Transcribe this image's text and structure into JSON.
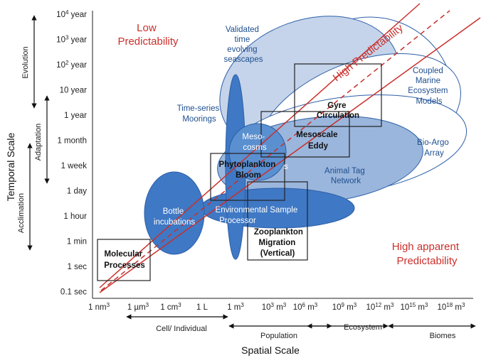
{
  "axes": {
    "y_title": "Temporal Scale",
    "x_title": "Spatial Scale",
    "y_ticks": [
      {
        "base": "10",
        "sup": "4",
        "unit": "year"
      },
      {
        "base": "10",
        "sup": "3",
        "unit": "year"
      },
      {
        "base": "10",
        "sup": "2",
        "unit": "year"
      },
      {
        "base": "10 year",
        "sup": "",
        "unit": ""
      },
      {
        "base": "1 year",
        "sup": "",
        "unit": ""
      },
      {
        "base": "1 month",
        "sup": "",
        "unit": ""
      },
      {
        "base": "1 week",
        "sup": "",
        "unit": ""
      },
      {
        "base": "1 day",
        "sup": "",
        "unit": ""
      },
      {
        "base": "1 hour",
        "sup": "",
        "unit": ""
      },
      {
        "base": "1 min",
        "sup": "",
        "unit": ""
      },
      {
        "base": "1 sec",
        "sup": "",
        "unit": ""
      },
      {
        "base": "0.1 sec",
        "sup": "",
        "unit": ""
      }
    ],
    "x_ticks": [
      {
        "base": "1 nm",
        "sup": "3"
      },
      {
        "base": "1 µm",
        "sup": "3"
      },
      {
        "base": "1 cm",
        "sup": "3"
      },
      {
        "base": "1 L",
        "sup": ""
      },
      {
        "base": "1 m",
        "sup": "3"
      },
      {
        "base": "10",
        "sup": "3",
        "tail": " m",
        "tailsup": "3"
      },
      {
        "base": "10",
        "sup": "6",
        "tail": " m",
        "tailsup": "3"
      },
      {
        "base": "10",
        "sup": "9",
        "tail": " m",
        "tailsup": "3"
      },
      {
        "base": "10",
        "sup": "12",
        "tail": " m",
        "tailsup": "3"
      },
      {
        "base": "10",
        "sup": "15",
        "tail": " m",
        "tailsup": "3"
      },
      {
        "base": "10",
        "sup": "18",
        "tail": " m",
        "tailsup": "3"
      }
    ]
  },
  "temporal_ranges": [
    "Evolution",
    "Adaptation",
    "Acclimation"
  ],
  "spatial_ranges": [
    "Cell/ Individual",
    "Population",
    "Ecosystem",
    "Biomes"
  ],
  "regions": {
    "low_predictability": [
      "Low",
      "Predictability"
    ],
    "high_predictability": "High Predictability",
    "high_apparent": [
      "High apparent",
      "Predictability"
    ]
  },
  "observing_systems": {
    "validated": [
      "Validated",
      "time",
      "evolving",
      "seascapes"
    ],
    "coupled": [
      "Coupled",
      "Marine",
      "Ecosystem",
      "Models"
    ],
    "time_series": [
      "Time-series",
      "Moorings"
    ],
    "bio_argo": [
      "Bio-Argo",
      "Array"
    ],
    "mesocosms": [
      "Meso-",
      "cosms"
    ],
    "mesocosms_tail": "s",
    "animal_tag": [
      "Animal Tag",
      "Network"
    ],
    "bottle": [
      "Bottle",
      "incubations"
    ],
    "env_sample": [
      "Environmental Sample",
      "Processor"
    ]
  },
  "processes": {
    "molecular": [
      "Molecular",
      "Processes"
    ],
    "gyre": [
      "Gyre",
      "Circulation"
    ],
    "mesoscale": [
      "Mesoscale",
      "Eddy"
    ],
    "phyto": [
      "Phytoplankton",
      "Bloom"
    ],
    "zoo": [
      "Zooplankton",
      "Migration",
      "(Vertical)"
    ]
  }
}
